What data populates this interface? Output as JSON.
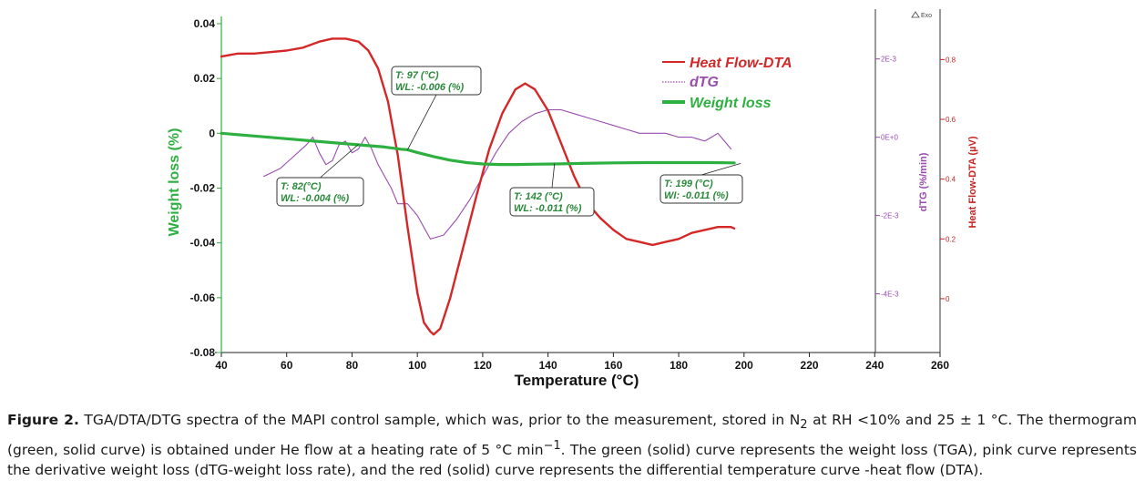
{
  "chart_data": {
    "type": "line",
    "xlabel": "Temperature (°C)",
    "xlim": [
      40,
      260
    ],
    "xticks": [
      40,
      60,
      80,
      100,
      120,
      140,
      160,
      180,
      200,
      220,
      240,
      260
    ],
    "axes": {
      "weight": {
        "label": "Weight loss (%)",
        "lim": [
          -0.08,
          0.04
        ],
        "ticks": [
          0.04,
          0.02,
          0,
          -0.02,
          -0.04,
          -0.06,
          -0.08
        ],
        "tick_labels": [
          "0.04",
          "0.02",
          "0",
          "-0.02",
          "-0.04",
          "-0.06",
          "-0.08"
        ],
        "color": "#2eb040"
      },
      "dtg": {
        "label": "dTG (%/min)",
        "lim": [
          -0.0055,
          0.0029
        ],
        "ticks": [
          0.002,
          0,
          -0.002,
          -0.004
        ],
        "tick_labels": [
          "2E-3",
          "0E+0",
          "-2E-3",
          "-4E-3"
        ],
        "color": "#9a4bb0"
      },
      "dta": {
        "label": "Heat Flow-DTA (µV)",
        "lim": [
          -0.18,
          0.92
        ],
        "ticks": [
          0.8,
          0.6,
          0.4,
          0.2,
          0
        ],
        "tick_labels": [
          "0.8",
          "0.6",
          "0.4",
          "0.2",
          "0"
        ],
        "color": "#cc2222"
      }
    },
    "exo_label": "Exo",
    "series": [
      {
        "name": "Heat Flow-DTA",
        "axis": "dta",
        "color": "#d42828",
        "x": [
          40,
          45,
          50,
          55,
          60,
          65,
          70,
          74,
          78,
          82,
          85,
          88,
          91,
          94,
          97,
          100,
          102,
          104,
          105,
          107,
          110,
          114,
          118,
          122,
          126,
          130,
          133,
          136,
          140,
          144,
          148,
          152,
          156,
          160,
          164,
          168,
          172,
          176,
          180,
          184,
          188,
          192,
          196,
          197
        ],
        "y": [
          0.81,
          0.82,
          0.82,
          0.825,
          0.83,
          0.84,
          0.86,
          0.87,
          0.87,
          0.86,
          0.83,
          0.77,
          0.66,
          0.48,
          0.24,
          0.02,
          -0.08,
          -0.11,
          -0.12,
          -0.1,
          0.0,
          0.17,
          0.34,
          0.5,
          0.62,
          0.7,
          0.72,
          0.7,
          0.63,
          0.52,
          0.41,
          0.32,
          0.27,
          0.23,
          0.2,
          0.19,
          0.18,
          0.19,
          0.2,
          0.22,
          0.23,
          0.24,
          0.24,
          0.235
        ]
      },
      {
        "name": "dTG",
        "axis": "dtg",
        "color": "#9a4bb0",
        "x": [
          53,
          58,
          62,
          66,
          68,
          70,
          72,
          74,
          76,
          78,
          80,
          82,
          84,
          86,
          88,
          90,
          92,
          94,
          97,
          100,
          104,
          108,
          112,
          116,
          120,
          124,
          128,
          132,
          136,
          140,
          144,
          148,
          152,
          156,
          160,
          164,
          168,
          172,
          176,
          180,
          184,
          188,
          190,
          192,
          194,
          196
        ],
        "y": [
          -0.001,
          -0.0008,
          -0.0005,
          -0.0002,
          0.0,
          -0.0004,
          -0.0007,
          -0.0006,
          -0.0002,
          -0.0001,
          -0.0004,
          -0.0003,
          0.0,
          -0.0003,
          -0.0007,
          -0.001,
          -0.0013,
          -0.0017,
          -0.0017,
          -0.002,
          -0.0026,
          -0.0025,
          -0.0021,
          -0.0016,
          -0.001,
          -0.0004,
          0.0001,
          0.0004,
          0.0006,
          0.0007,
          0.0007,
          0.0006,
          0.0005,
          0.0004,
          0.0003,
          0.0002,
          0.0001,
          0.0001,
          0.0001,
          0.0,
          0.0,
          -0.0001,
          0.0,
          0.0001,
          -0.0001,
          -0.0003
        ]
      },
      {
        "name": "Weight loss",
        "axis": "weight",
        "color": "#2eb040",
        "x": [
          40,
          50,
          60,
          70,
          80,
          85,
          90,
          95,
          97,
          100,
          105,
          110,
          115,
          120,
          125,
          130,
          135,
          142,
          150,
          160,
          170,
          180,
          190,
          197
        ],
        "y": [
          0.0,
          -0.001,
          -0.002,
          -0.003,
          -0.004,
          -0.0045,
          -0.005,
          -0.0058,
          -0.006,
          -0.007,
          -0.0085,
          -0.0098,
          -0.0107,
          -0.0112,
          -0.0114,
          -0.0114,
          -0.0113,
          -0.0112,
          -0.011,
          -0.0108,
          -0.0107,
          -0.0107,
          -0.0107,
          -0.0108
        ]
      }
    ],
    "legend": {
      "position": "top-right",
      "entries": [
        {
          "label": "Heat Flow-DTA",
          "color": "#d42828",
          "style": "solid"
        },
        {
          "label": "dTG",
          "color": "#9a4bb0",
          "style": "dotted"
        },
        {
          "label": "Weight loss",
          "color": "#2eb040",
          "style": "solid-thick"
        }
      ]
    },
    "annotations": [
      {
        "line1": "T: 97 (°C)",
        "line2": "WL: -0.006 (%)",
        "x": 97,
        "y": -0.006
      },
      {
        "line1": "T: 82(°C)",
        "line2": "WL: -0.004 (%)",
        "x": 82,
        "y": -0.004
      },
      {
        "line1": "T: 142 (°C)",
        "line2": "WL: -0.011 (%)",
        "x": 142,
        "y": -0.011
      },
      {
        "line1": "T: 199 (°C)",
        "line2": "WI: -0.011 (%)",
        "x": 199,
        "y": -0.011
      }
    ]
  },
  "caption": {
    "label": "Figure 2.",
    "text_before_sub": " TGA/DTA/DTG spectra of the MAPI control sample, which was, prior to the measurement, stored in N",
    "subscript": "2",
    "text_before_sup": " at RH <10% and 25 ± 1 °C. The thermogram (green, solid curve) is obtained under He flow at a heating rate of 5 °C min",
    "superscript": "−1",
    "text_after_sup": ". The green (solid) curve represents the weight loss (TGA), pink curve represents the derivative weight loss (dTG-weight loss rate), and the red (solid) curve represents the differential temperature curve -heat flow (DTA)."
  }
}
